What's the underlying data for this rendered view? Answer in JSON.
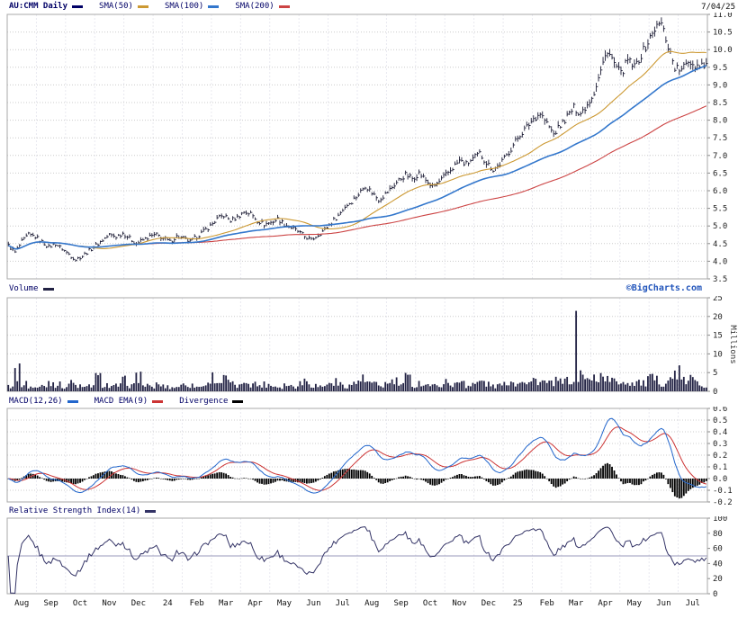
{
  "header": {
    "symbol": "AU:CMM Daily",
    "symbol_color": "#000066",
    "date": "7/04/25",
    "sma_legend": [
      {
        "label": "SMA(50)",
        "color": "#cc9933"
      },
      {
        "label": "SMA(100)",
        "color": "#3377cc"
      },
      {
        "label": "SMA(200)",
        "color": "#cc4444"
      }
    ]
  },
  "volume_panel": {
    "label": "Volume",
    "color": "#222244",
    "watermark": "©BigCharts.com",
    "unit_label": "Millions"
  },
  "macd_panel": {
    "legend": [
      {
        "label": "MACD(12,26)",
        "color": "#2266cc"
      },
      {
        "label": "MACD EMA(9)",
        "color": "#cc3333"
      },
      {
        "label": "Divergence",
        "color": "#000000"
      }
    ]
  },
  "rsi_panel": {
    "label": "Relative Strength Index(14)",
    "color": "#333366",
    "refline": 50
  },
  "x_axis": {
    "labels": [
      "Aug",
      "Sep",
      "Oct",
      "Nov",
      "Dec",
      "24",
      "Feb",
      "Mar",
      "Apr",
      "May",
      "Jun",
      "Jul",
      "Aug",
      "Sep",
      "Oct",
      "Nov",
      "Dec",
      "25",
      "Feb",
      "Mar",
      "Apr",
      "May",
      "Jun",
      "Jul"
    ]
  },
  "chart_data": [
    {
      "type": "ohlc",
      "name": "AU:CMM daily price with SMA overlays",
      "x_range": "Aug 2023 - Jul 2025, weekly samples",
      "ylim": [
        3.5,
        11.0
      ],
      "yticks": [
        "11.0",
        "10.5",
        "10.0",
        "9.5",
        "9.0",
        "8.5",
        "8.0",
        "7.5",
        "7.0",
        "6.5",
        "6.0",
        "5.5",
        "5.0",
        "4.5",
        "4.0",
        "3.5"
      ],
      "overlays": [
        {
          "name": "SMA(50)",
          "color": "#cc9933"
        },
        {
          "name": "SMA(100)",
          "color": "#3377cc"
        },
        {
          "name": "SMA(200)",
          "color": "#cc4444"
        }
      ],
      "close_weekly": [
        4.45,
        4.25,
        4.55,
        4.75,
        4.7,
        4.55,
        4.4,
        4.5,
        4.35,
        4.2,
        4.05,
        4.15,
        4.3,
        4.45,
        4.6,
        4.75,
        4.7,
        4.8,
        4.65,
        4.5,
        4.6,
        4.7,
        4.75,
        4.65,
        4.55,
        4.7,
        4.65,
        4.55,
        4.7,
        4.85,
        5.0,
        5.2,
        5.3,
        5.15,
        5.25,
        5.4,
        5.35,
        5.15,
        5.05,
        5.1,
        5.2,
        5.05,
        4.95,
        4.85,
        4.7,
        4.6,
        4.75,
        4.9,
        5.1,
        5.3,
        5.55,
        5.7,
        5.9,
        6.15,
        5.95,
        5.75,
        5.9,
        6.1,
        6.3,
        6.45,
        6.35,
        6.5,
        6.3,
        6.1,
        6.25,
        6.45,
        6.65,
        6.85,
        6.75,
        6.9,
        7.05,
        6.8,
        6.6,
        6.75,
        7.0,
        7.3,
        7.6,
        7.8,
        8.05,
        8.2,
        7.9,
        7.6,
        7.85,
        8.1,
        8.35,
        8.2,
        8.45,
        8.8,
        9.4,
        10.0,
        9.6,
        9.3,
        9.7,
        9.5,
        9.85,
        10.2,
        10.6,
        10.75,
        10.1,
        9.5,
        9.4,
        9.7,
        9.55,
        9.6
      ]
    },
    {
      "type": "bar",
      "name": "Volume",
      "unit": "Millions",
      "ylim": [
        0,
        25
      ],
      "yticks": [
        "25",
        "20",
        "15",
        "10",
        "5",
        "0"
      ],
      "values_weekly": [
        1.5,
        5.0,
        2.0,
        1.2,
        1.0,
        1.5,
        2.5,
        1.8,
        1.2,
        2.2,
        1.4,
        1.0,
        1.6,
        3.5,
        1.8,
        1.2,
        1.5,
        2.8,
        1.5,
        4.2,
        1.6,
        1.1,
        1.8,
        1.3,
        1.0,
        1.4,
        2.0,
        1.5,
        1.2,
        1.8,
        3.8,
        2.5,
        3.2,
        1.8,
        1.4,
        2.8,
        2.0,
        1.6,
        1.9,
        1.5,
        1.2,
        1.8,
        1.4,
        2.2,
        3.0,
        1.6,
        1.3,
        1.8,
        2.5,
        1.8,
        1.5,
        2.0,
        3.2,
        2.4,
        1.8,
        1.5,
        2.0,
        2.6,
        1.8,
        3.4,
        1.6,
        2.2,
        1.8,
        1.4,
        1.9,
        2.4,
        1.8,
        2.8,
        1.6,
        2.0,
        2.6,
        1.8,
        1.4,
        1.7,
        2.8,
        2.2,
        3.5,
        2.4,
        3.0,
        2.5,
        2.0,
        2.6,
        2.4,
        3.2,
        21.5,
        4.5,
        2.8,
        3.6,
        4.2,
        3.0,
        2.5,
        2.8,
        2.2,
        2.6,
        2.0,
        3.2,
        2.8,
        2.4,
        3.0,
        5.2,
        2.6,
        3.4,
        2.2,
        1.8
      ]
    },
    {
      "type": "line",
      "name": "MACD(12,26) with EMA(9) signal and black divergence histogram",
      "ylim": [
        -0.2,
        0.6
      ],
      "yticks": [
        "0.6",
        "0.5",
        "0.4",
        "0.3",
        "0.2",
        "0.1",
        "0.0",
        "-0.1",
        "-0.2"
      ],
      "derived_from": "close_weekly of panel 0"
    },
    {
      "type": "line",
      "name": "Relative Strength Index(14)",
      "ylim": [
        0,
        100
      ],
      "yticks": [
        "100",
        "80",
        "60",
        "40",
        "20",
        "0"
      ],
      "refline": 50,
      "derived_from": "close_weekly of panel 0"
    }
  ]
}
